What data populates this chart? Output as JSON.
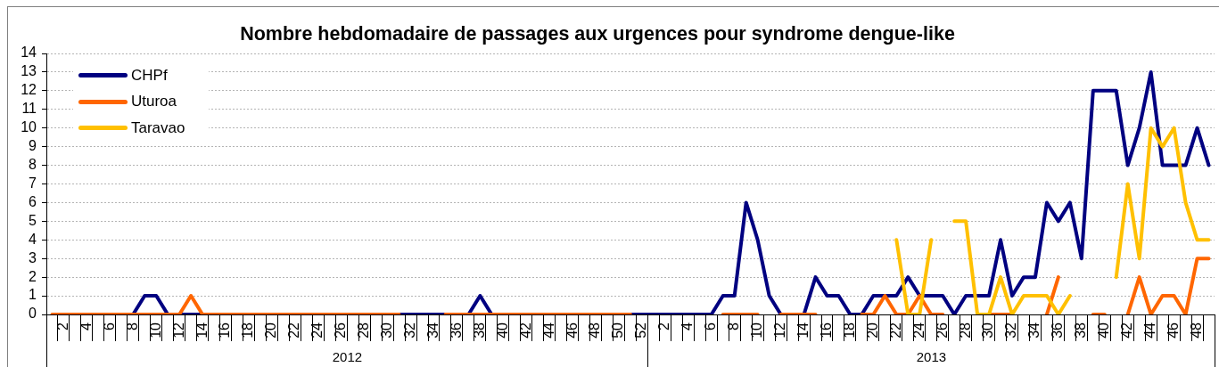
{
  "chart_data": {
    "type": "line",
    "title": "Nombre hebdomadaire de passages aux urgences pour syndrome dengue-like",
    "categories": [
      null,
      "2",
      null,
      "4",
      null,
      "6",
      null,
      "8",
      null,
      "10",
      null,
      "12",
      null,
      "14",
      null,
      "16",
      null,
      "18",
      null,
      "20",
      null,
      "22",
      null,
      "24",
      null,
      "26",
      null,
      "28",
      null,
      "30",
      null,
      "32",
      null,
      "34",
      null,
      "36",
      null,
      "38",
      null,
      "40",
      null,
      "42",
      null,
      "44",
      null,
      "46",
      null,
      "48",
      null,
      "50",
      null,
      "52",
      null,
      "2",
      null,
      "4",
      null,
      "6",
      null,
      "8",
      null,
      "10",
      null,
      "12",
      null,
      "14",
      null,
      "16",
      null,
      "18",
      null,
      "20",
      null,
      "22",
      null,
      "24",
      null,
      "26",
      null,
      "28",
      null,
      "30",
      null,
      "32",
      null,
      "34",
      null,
      "36",
      null,
      "38",
      null,
      "40",
      null,
      "42",
      null,
      "44",
      null,
      "46",
      null,
      "48",
      null
    ],
    "series": [
      {
        "name": "CHPf",
        "color": "#000080",
        "values": [
          null,
          null,
          null,
          null,
          null,
          null,
          null,
          0,
          1,
          1,
          0,
          0,
          0,
          0,
          null,
          null,
          null,
          null,
          null,
          null,
          null,
          null,
          null,
          null,
          null,
          null,
          null,
          null,
          null,
          null,
          0,
          0,
          0,
          0,
          0,
          null,
          0,
          1,
          0,
          null,
          null,
          null,
          null,
          null,
          null,
          null,
          null,
          null,
          null,
          null,
          0,
          0,
          0,
          0,
          0,
          0,
          0,
          0,
          1,
          1,
          6,
          4,
          1,
          0,
          null,
          0,
          2,
          1,
          1,
          0,
          0,
          1,
          1,
          1,
          2,
          1,
          1,
          1,
          0,
          1,
          1,
          1,
          4,
          1,
          2,
          2,
          6,
          5,
          6,
          3,
          12,
          12,
          12,
          8,
          10,
          13,
          8,
          8,
          8,
          10,
          8
        ]
      },
      {
        "name": "Uturoa",
        "color": "#ff6600",
        "values": [
          0,
          0,
          0,
          0,
          0,
          0,
          0,
          0,
          0,
          0,
          0,
          0,
          1,
          0,
          0,
          0,
          0,
          0,
          0,
          0,
          0,
          0,
          0,
          0,
          0,
          0,
          0,
          0,
          0,
          0,
          0,
          null,
          null,
          null,
          0,
          0,
          0,
          0,
          0,
          0,
          0,
          0,
          0,
          0,
          0,
          0,
          0,
          0,
          0,
          0,
          0,
          null,
          null,
          null,
          null,
          null,
          null,
          null,
          0,
          0,
          0,
          0,
          null,
          0,
          0,
          0,
          0,
          null,
          null,
          null,
          0,
          0,
          1,
          0,
          0,
          1,
          0,
          0,
          null,
          null,
          null,
          0,
          0,
          0,
          null,
          null,
          0,
          2,
          null,
          null,
          0,
          0,
          null,
          0,
          2,
          0,
          1,
          1,
          0,
          3,
          3
        ]
      },
      {
        "name": "Taravao",
        "color": "#ffc000",
        "values": [
          null,
          null,
          null,
          null,
          null,
          null,
          null,
          null,
          null,
          null,
          null,
          null,
          null,
          null,
          null,
          null,
          null,
          null,
          null,
          null,
          null,
          null,
          null,
          null,
          null,
          null,
          null,
          null,
          null,
          null,
          null,
          null,
          null,
          null,
          null,
          null,
          null,
          null,
          null,
          null,
          null,
          null,
          null,
          null,
          null,
          null,
          null,
          null,
          null,
          null,
          null,
          null,
          null,
          null,
          null,
          null,
          null,
          null,
          null,
          null,
          null,
          null,
          null,
          null,
          null,
          null,
          null,
          null,
          null,
          null,
          null,
          null,
          null,
          4,
          0,
          0,
          4,
          null,
          5,
          5,
          0,
          0,
          2,
          0,
          1,
          1,
          1,
          0,
          1,
          null,
          null,
          null,
          2,
          7,
          3,
          10,
          9,
          10,
          6,
          4,
          4
        ]
      }
    ],
    "ylim": [
      0,
      14
    ],
    "yticks": [
      0,
      1,
      2,
      3,
      4,
      5,
      6,
      7,
      8,
      9,
      10,
      11,
      12,
      13,
      14
    ],
    "grid": "y",
    "legend": "top left",
    "marker": "none",
    "annotations": [
      "2012",
      "2013"
    ]
  }
}
